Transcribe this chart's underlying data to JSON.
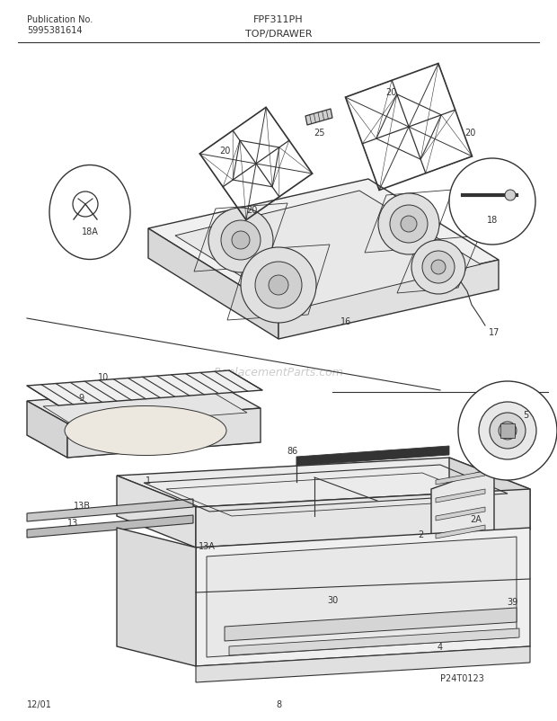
{
  "title_center": "FPF311PH",
  "title_sub": "TOP/DRAWER",
  "pub_no_label": "Publication No.",
  "pub_no": "5995381614",
  "date": "12/01",
  "page": "8",
  "part_id": "P24T0123",
  "watermark": "ReplacementParts.com",
  "bg_color": "#ffffff",
  "lc": "#333333",
  "fig_w": 6.2,
  "fig_h": 8.03,
  "dpi": 100
}
